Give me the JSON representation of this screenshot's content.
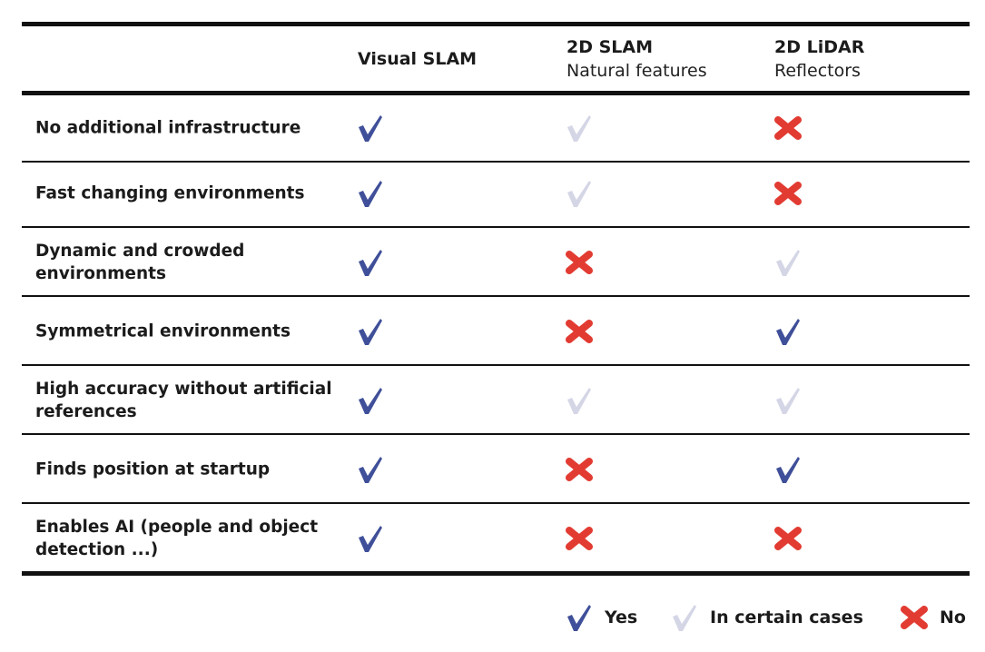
{
  "columns": [
    {
      "title": "Visual SLAM",
      "subtitle": ""
    },
    {
      "title": "2D SLAM",
      "subtitle": "Natural features"
    },
    {
      "title": "2D LiDAR",
      "subtitle": "Reflectors"
    }
  ],
  "rows": [
    {
      "label": "No additional infrastructure",
      "values": [
        "yes",
        "certain",
        "no"
      ]
    },
    {
      "label": "Fast changing environments",
      "values": [
        "yes",
        "certain",
        "no"
      ]
    },
    {
      "label": "Dynamic and crowded environments",
      "values": [
        "yes",
        "no",
        "certain"
      ]
    },
    {
      "label": "Symmetrical environments",
      "values": [
        "yes",
        "no",
        "yes"
      ]
    },
    {
      "label": "High accuracy without artificial references",
      "values": [
        "yes",
        "certain",
        "certain"
      ]
    },
    {
      "label": "Finds position at startup",
      "values": [
        "yes",
        "no",
        "yes"
      ]
    },
    {
      "label": "Enables AI (people and object detection ...)",
      "values": [
        "yes",
        "no",
        "no"
      ]
    }
  ],
  "legend": {
    "yes": "Yes",
    "certain": "In certain cases",
    "no": "No"
  },
  "colors": {
    "yes": "#3f4f99",
    "certain": "#d4d6e6",
    "no": "#e23b32"
  },
  "icons": {
    "yes": "checkmark-icon",
    "certain": "checkmark-icon",
    "no": "cross-icon"
  }
}
